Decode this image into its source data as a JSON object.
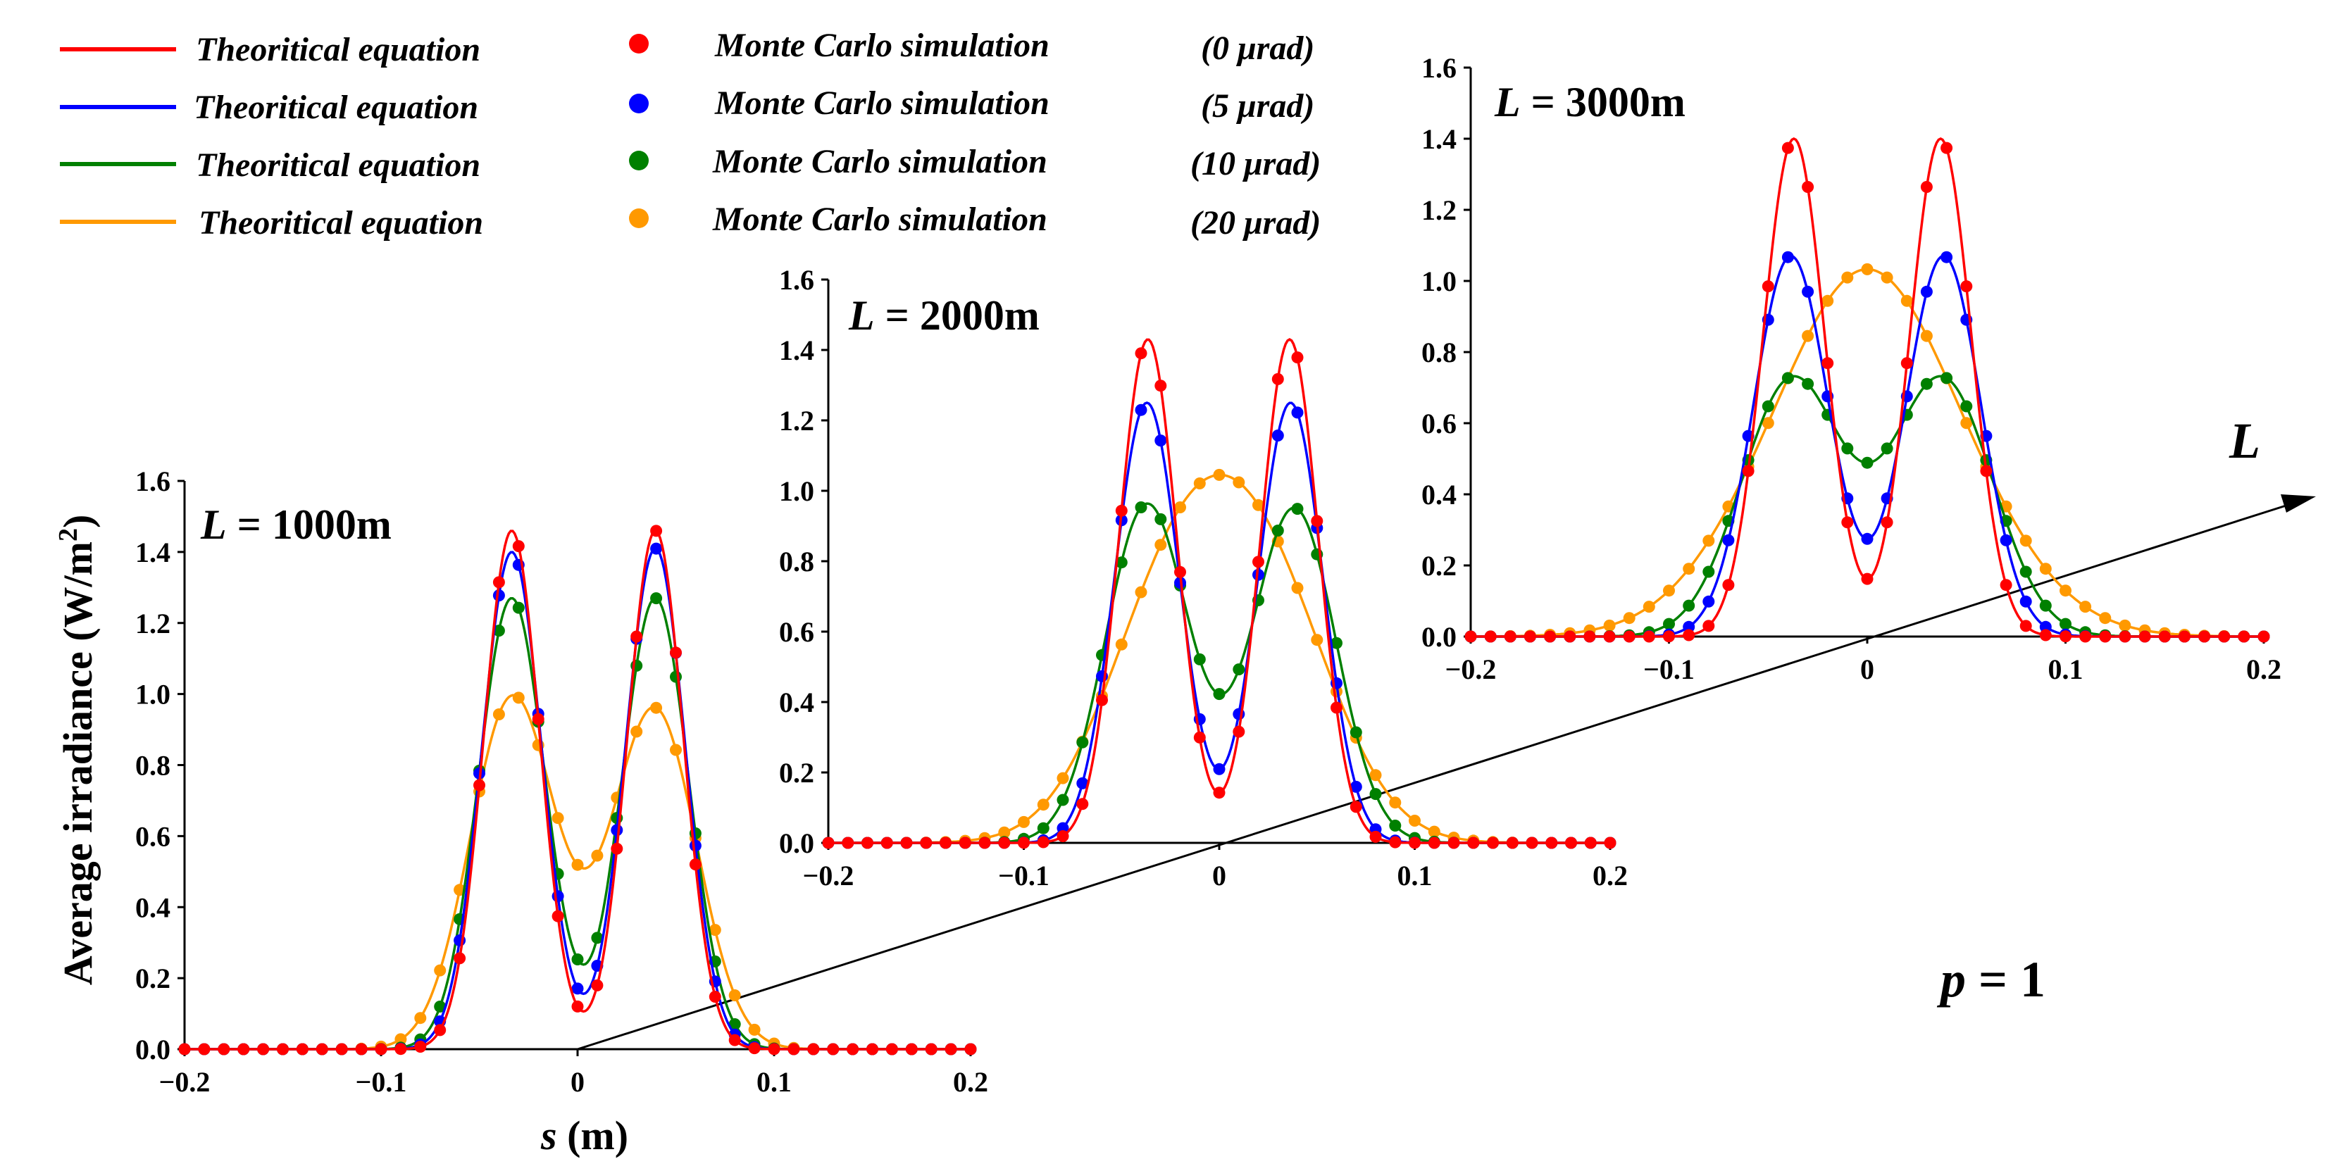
{
  "chart_data": {
    "type": "line",
    "legend": [
      {
        "line_label": "Theoritical equation",
        "marker_label": "Monte Carlo simulation",
        "tilt": "(0 μrad)",
        "color": "#ff0000"
      },
      {
        "line_label": "Theoritical equation",
        "marker_label": "Monte Carlo simulation",
        "tilt": "(5 μrad)",
        "color": "#0000ff"
      },
      {
        "line_label": "Theoritical equation",
        "marker_label": "Monte Carlo simulation",
        "tilt": "(10 μrad)",
        "color": "#008000"
      },
      {
        "line_label": "Theoritical equation",
        "marker_label": "Monte Carlo simulation",
        "tilt": "(20 μrad)",
        "color": "#ff9900"
      }
    ],
    "ylabel_main": "Average irradiance (W/m",
    "ylabel_sup": "2",
    "ylabel_close": ")",
    "xlabel_var": "s",
    "xlabel_unit": " (m)",
    "depth_axis_label": "L",
    "parameter": {
      "name": "p",
      "equals": " = 1"
    },
    "xlim": [
      -0.2,
      0.2
    ],
    "ylim": [
      0,
      1.6
    ],
    "x_ticks": [
      "−0.2",
      "−0.1",
      "0",
      "0.1",
      "0.2"
    ],
    "y_ticks": [
      "0.0",
      "0.2",
      "0.4",
      "0.6",
      "0.8",
      "1.0",
      "1.2",
      "1.4",
      "1.6"
    ],
    "panels": [
      {
        "label_var": "L",
        "label_val": " = 1000m",
        "series": [
          {
            "name": "0 μrad",
            "color": "#ff0000",
            "peaks": [
              [
                -0.0335,
                1.46,
                0.0142
              ],
              [
                0.0396,
                1.46,
                0.0142
              ]
            ],
            "base": 0,
            "floor": 0.02
          },
          {
            "name": "5 μrad",
            "color": "#0000ff",
            "peaks": [
              [
                -0.0335,
                1.4,
                0.0152
              ],
              [
                0.0396,
                1.41,
                0.0152
              ]
            ],
            "base": 0,
            "floor": 0.08
          },
          {
            "name": "10 μrad",
            "color": "#008000",
            "peaks": [
              [
                -0.0335,
                1.27,
                0.0168
              ],
              [
                0.0396,
                1.27,
                0.0168
              ]
            ],
            "base": 0,
            "floor": 0.27
          },
          {
            "name": "20 μrad",
            "color": "#ff9900",
            "peaks": [
              [
                -0.034,
                0.93,
                0.021
              ],
              [
                0.04,
                0.91,
                0.021
              ]
            ],
            "base": 0.12,
            "floor": 0.61
          }
        ]
      },
      {
        "label_var": "L",
        "label_val": " = 2000m",
        "series": [
          {
            "name": "0 μrad",
            "color": "#ff0000",
            "peaks": [
              [
                -0.0365,
                1.43,
                0.0148
              ],
              [
                0.036,
                1.43,
                0.0148
              ]
            ],
            "base": 0,
            "floor": 0.01
          },
          {
            "name": "5 μrad",
            "color": "#0000ff",
            "peaks": [
              [
                -0.037,
                1.25,
                0.0165
              ],
              [
                0.0365,
                1.25,
                0.0165
              ]
            ],
            "base": 0,
            "floor": 0.26
          },
          {
            "name": "10 μrad",
            "color": "#008000",
            "peaks": [
              [
                -0.0375,
                0.93,
                0.021
              ],
              [
                0.039,
                0.92,
                0.021
              ]
            ],
            "base": 0.07,
            "floor": 0.6
          },
          {
            "name": "20 μrad",
            "color": "#ff9900",
            "peaks": [
              [
                -0.026,
                0.62,
                0.034
              ],
              [
                0.027,
                0.62,
                0.034
              ]
            ],
            "base": 0.13,
            "floor": 0.75
          }
        ]
      },
      {
        "label_var": "L",
        "label_val": " = 3000m",
        "series": [
          {
            "name": "0 μrad",
            "color": "#ff0000",
            "peaks": [
              [
                -0.037,
                1.4,
                0.0155
              ],
              [
                0.037,
                1.4,
                0.0155
              ]
            ],
            "base": 0,
            "floor": 0.01
          },
          {
            "name": "5 μrad",
            "color": "#0000ff",
            "peaks": [
              [
                -0.0385,
                1.07,
                0.019
              ],
              [
                0.0385,
                1.07,
                0.019
              ]
            ],
            "base": 0,
            "floor": 0.41
          },
          {
            "name": "10 μrad",
            "color": "#008000",
            "peaks": [
              [
                -0.039,
                0.69,
                0.025
              ],
              [
                0.039,
                0.69,
                0.025
              ]
            ],
            "base": 0.08,
            "floor": 0.71
          },
          {
            "name": "20 μrad",
            "color": "#ff9900",
            "peaks": [
              [
                -0.022,
                0.52,
                0.045
              ],
              [
                0.022,
                0.52,
                0.045
              ]
            ],
            "base": 0.11,
            "floor": 0.64
          }
        ]
      }
    ]
  }
}
